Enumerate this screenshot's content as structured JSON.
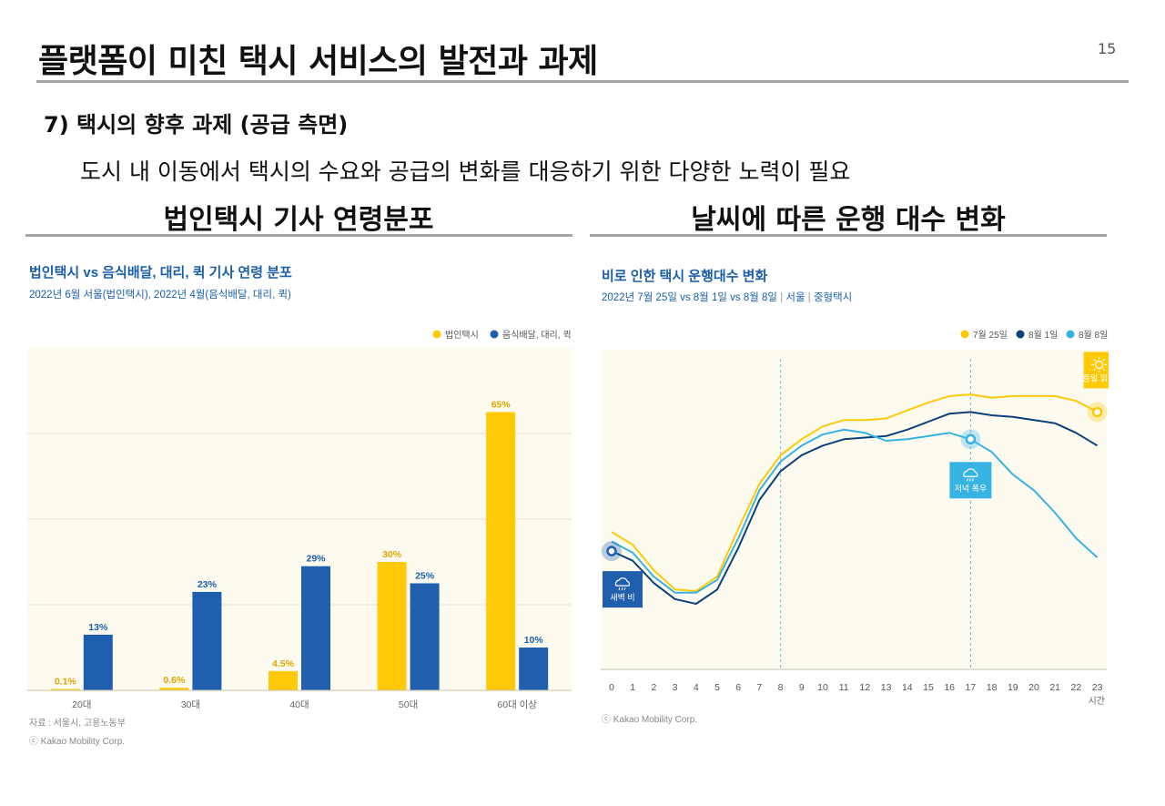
{
  "slide": {
    "title": "플랫폼이 미친 택시 서비스의 발전과 과제",
    "page_number": "15",
    "subtitle": "7) 택시의 향후 과제 (공급 측면)",
    "description": "도시 내 이동에서 택시의 수요와 공급의 변화를 대응하기 위한 다양한 노력이 필요",
    "left_heading": "법인택시 기사 연령분포",
    "right_heading": "날씨에 따른 운행 대수 변화"
  },
  "colors": {
    "yellow": "#FFC907",
    "darkblue": "#1F5FAD",
    "navy": "#0D3F7C",
    "lightblue": "#37B3E3",
    "title_blue": "#1A5EA8",
    "value_orange": "#E0A400",
    "value_blue": "#1A5EA8",
    "bg_cream": "#FDFBF0"
  },
  "chart_data": [
    {
      "type": "bar",
      "title": "법인택시 vs 음식배달, 대리, 퀵 기사 연령 분포",
      "subtitle": "2022년 6월 서울(법인택시), 2022년 4월(음식배달, 대리, 퀵)",
      "categories": [
        "20대",
        "30대",
        "40대",
        "50대",
        "60대 이상"
      ],
      "series": [
        {
          "name": "법인택시",
          "values": [
            0.1,
            0.6,
            4.5,
            30,
            65
          ],
          "labels": [
            "0.1%",
            "0.6%",
            "4.5%",
            "30%",
            "65%"
          ],
          "color": "#FFC907"
        },
        {
          "name": "음식배달, 대리, 퀵",
          "values": [
            13,
            23,
            29,
            25,
            10
          ],
          "labels": [
            "13%",
            "23%",
            "29%",
            "25%",
            "10%"
          ],
          "color": "#1F5FAD"
        }
      ],
      "ylim": [
        0,
        80
      ],
      "grid": true,
      "legend": "top-right",
      "source": "자료 : 서울시, 고용노동부",
      "credit": "ⓒ Kakao Mobility Corp."
    },
    {
      "type": "line",
      "title": "비로 인한 택시 운행대수 변화",
      "subtitle": "2022년 7월 25일 vs  8월 1일 vs  8월 8일",
      "subtitle_tags": [
        "서울",
        "중형택시"
      ],
      "x": [
        0,
        1,
        2,
        3,
        4,
        5,
        6,
        7,
        8,
        9,
        10,
        11,
        12,
        13,
        14,
        15,
        16,
        17,
        18,
        19,
        20,
        21,
        22,
        23
      ],
      "xlabel": "시간",
      "series": [
        {
          "name": "7월 25일",
          "color": "#FFC907",
          "values": [
            43,
            39,
            31,
            25,
            24.5,
            29,
            44,
            58,
            67,
            72,
            76,
            78,
            78,
            78.5,
            81,
            83.5,
            85.5,
            86,
            85,
            85.5,
            85.5,
            85.5,
            84,
            80.5
          ]
        },
        {
          "name": "8월 1일",
          "color": "#0D3F7C",
          "values": [
            37,
            34,
            27,
            22,
            20.5,
            25,
            38,
            53,
            62,
            67,
            70,
            72,
            72.5,
            73,
            75,
            77.5,
            80,
            80.5,
            79.5,
            79,
            78,
            77,
            74,
            70
          ]
        },
        {
          "name": "8월 8일",
          "color": "#37B3E3",
          "values": [
            40,
            36.5,
            29,
            24,
            24,
            28,
            41,
            56,
            65,
            70,
            73.5,
            75,
            74,
            71.5,
            72,
            73,
            74,
            72,
            68,
            61,
            56,
            49,
            41,
            35
          ]
        }
      ],
      "ylim": [
        0,
        100
      ],
      "legend": "top-right",
      "annotations": [
        {
          "label": "새벽 비",
          "x": 0,
          "series": "8월 1일",
          "icon": "rain-cloud-icon"
        },
        {
          "label": "저녁 폭우",
          "x": 17,
          "series": "8월 8일",
          "icon": "rain-cloud-icon"
        },
        {
          "label": "종일 맑음",
          "x": 23,
          "series": "7월 25일",
          "icon": "sun-icon"
        }
      ],
      "credit": "ⓒ Kakao Mobility Corp."
    }
  ]
}
